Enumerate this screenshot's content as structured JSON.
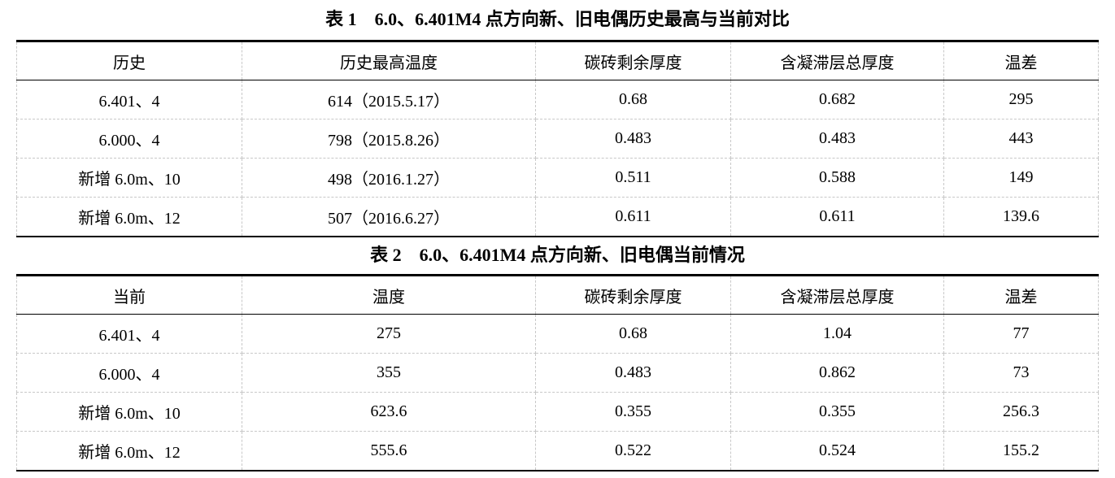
{
  "table1": {
    "caption": "表 1　6.0、6.401M4 点方向新、旧电偶历史最高与当前对比",
    "headers": [
      "历史",
      "历史最高温度",
      "碳砖剩余厚度",
      "含凝滞层总厚度",
      "温差"
    ],
    "rows": [
      [
        "6.401、4",
        "614（2015.5.17）",
        "0.68",
        "0.682",
        "295"
      ],
      [
        "6.000、4",
        "798（2015.8.26）",
        "0.483",
        "0.483",
        "443"
      ],
      [
        "新增 6.0m、10",
        "498（2016.1.27）",
        "0.511",
        "0.588",
        "149"
      ],
      [
        "新增 6.0m、12",
        "507（2016.6.27）",
        "0.611",
        "0.611",
        "139.6"
      ]
    ]
  },
  "table2": {
    "caption": "表 2　6.0、6.401M4 点方向新、旧电偶当前情况",
    "headers": [
      "当前",
      "温度",
      "碳砖剩余厚度",
      "含凝滞层总厚度",
      "温差"
    ],
    "rows": [
      [
        "6.401、4",
        "275",
        "0.68",
        "1.04",
        "77"
      ],
      [
        "6.000、4",
        "355",
        "0.483",
        "0.862",
        "73"
      ],
      [
        "新增 6.0m、10",
        "623.6",
        "0.355",
        "0.355",
        "256.3"
      ],
      [
        "新增 6.0m、12",
        "555.6",
        "0.522",
        "0.524",
        "155.2"
      ]
    ]
  }
}
